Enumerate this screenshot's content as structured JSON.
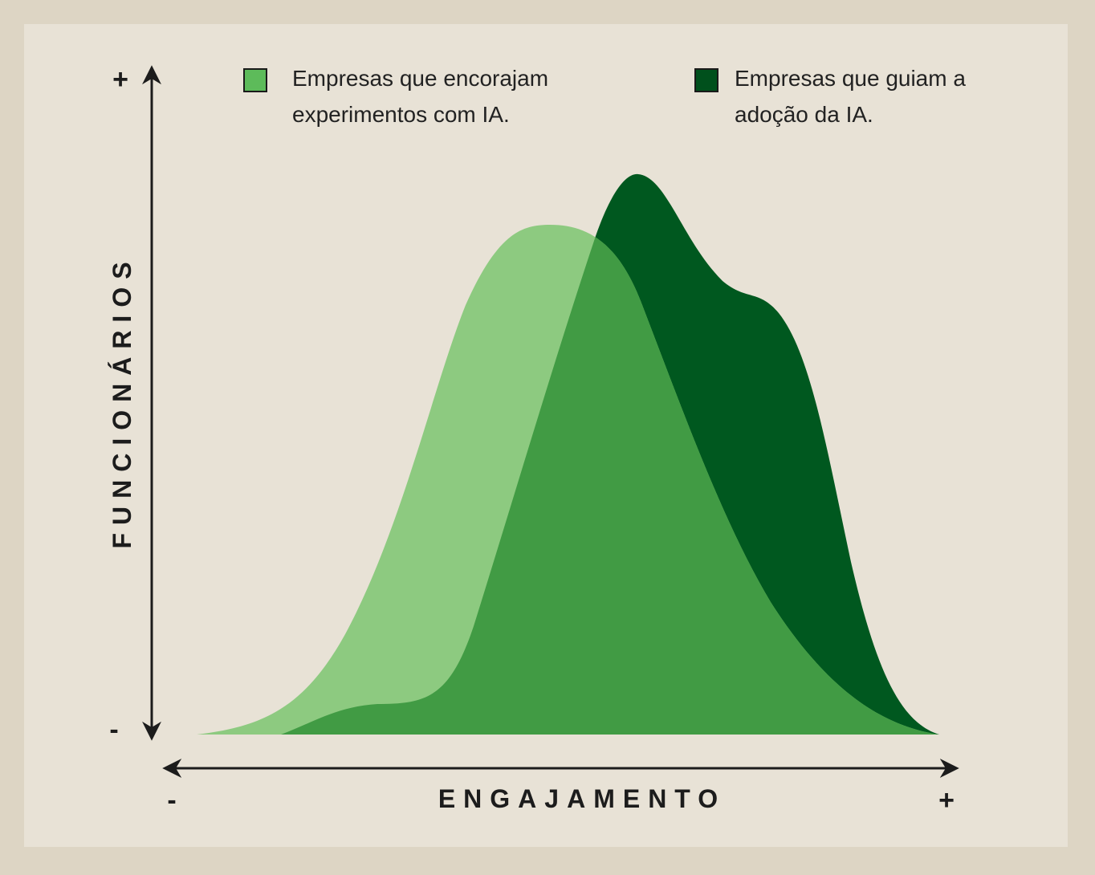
{
  "chart_data": {
    "type": "area",
    "x_label": "ENGAJAMENTO",
    "y_label": "FUNCIONÁRIOS",
    "x_ends": [
      "-",
      "+"
    ],
    "y_ends": [
      "-",
      "+"
    ],
    "series": [
      {
        "name": "Empresas que encorajam experimentos com IA.",
        "color": "#8dca80",
        "legend_color": "#5dbb5a"
      },
      {
        "name": "Empresas que guiam a adoção da IA.",
        "color": "#00581f",
        "legend_color": "#00501c"
      }
    ]
  }
}
